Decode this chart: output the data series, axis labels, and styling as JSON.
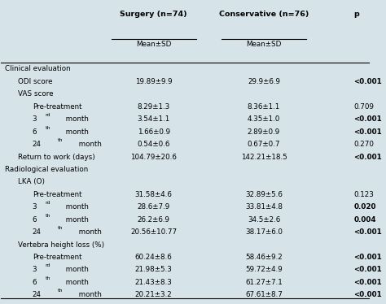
{
  "bg_color": "#d6e4ea",
  "header1": "Surgery (n=74)",
  "header2": "Conservative (n=76)",
  "header3": "p",
  "subheader": "Mean±SD",
  "rows": [
    {
      "label": "Clinical evaluation",
      "level": 0,
      "surgery": "",
      "conservative": "",
      "p": "",
      "p_bold": false
    },
    {
      "label": "ODI score",
      "level": 1,
      "surgery": "19.89±9.9",
      "conservative": "29.9±6.9",
      "p": "<0.001",
      "p_bold": true
    },
    {
      "label": "VAS score",
      "level": 1,
      "surgery": "",
      "conservative": "",
      "p": "",
      "p_bold": false
    },
    {
      "label": "Pre-treatment",
      "level": 2,
      "surgery": "8.29±1.3",
      "conservative": "8.36±1.1",
      "p": "0.709",
      "p_bold": false
    },
    {
      "label": "3rd month",
      "level": 2,
      "surgery": "3.54±1.1",
      "conservative": "4.35±1.0",
      "p": "<0.001",
      "p_bold": true
    },
    {
      "label": "6th month",
      "level": 2,
      "surgery": "1.66±0.9",
      "conservative": "2.89±0.9",
      "p": "<0.001",
      "p_bold": true
    },
    {
      "label": "24th month",
      "level": 2,
      "surgery": "0.54±0.6",
      "conservative": "0.67±0.7",
      "p": "0.270",
      "p_bold": false
    },
    {
      "label": "Return to work (days)",
      "level": 1,
      "surgery": "104.79±20.6",
      "conservative": "142.21±18.5",
      "p": "<0.001",
      "p_bold": true
    },
    {
      "label": "Radiological evaluation",
      "level": 0,
      "surgery": "",
      "conservative": "",
      "p": "",
      "p_bold": false
    },
    {
      "label": "LKA (O)",
      "level": 1,
      "surgery": "",
      "conservative": "",
      "p": "",
      "p_bold": false
    },
    {
      "label": "Pre-treatment",
      "level": 2,
      "surgery": "31.58±4.6",
      "conservative": "32.89±5.6",
      "p": "0.123",
      "p_bold": false
    },
    {
      "label": "3rd month",
      "level": 2,
      "surgery": "28.6±7.9",
      "conservative": "33.81±4.8",
      "p": "0.020",
      "p_bold": true
    },
    {
      "label": "6th month",
      "level": 2,
      "surgery": "26.2±6.9",
      "conservative": "34.5±2.6",
      "p": "0.004",
      "p_bold": true
    },
    {
      "label": "24th month",
      "level": 2,
      "surgery": "20.56±10.77",
      "conservative": "38.17±6.0",
      "p": "<0.001",
      "p_bold": true
    },
    {
      "label": "Vertebra height loss (%)",
      "level": 1,
      "surgery": "",
      "conservative": "",
      "p": "",
      "p_bold": false
    },
    {
      "label": "Pre-treatment",
      "level": 2,
      "surgery": "60.24±8.6",
      "conservative": "58.46±9.2",
      "p": "<0.001",
      "p_bold": true
    },
    {
      "label": "3rd month",
      "level": 2,
      "surgery": "21.98±5.3",
      "conservative": "59.72±4.9",
      "p": "<0.001",
      "p_bold": true
    },
    {
      "label": "6th month",
      "level": 2,
      "surgery": "21.43±8.3",
      "conservative": "61.27±7.1",
      "p": "<0.001",
      "p_bold": true
    },
    {
      "label": "24th month",
      "level": 2,
      "surgery": "20.21±3.2",
      "conservative": "67.61±8.7",
      "p": "<0.001",
      "p_bold": true
    }
  ],
  "col_label": 0.01,
  "col_surg": 0.415,
  "col_cons": 0.715,
  "col_p": 0.96,
  "font_size": 6.3,
  "header_font_size": 6.8
}
